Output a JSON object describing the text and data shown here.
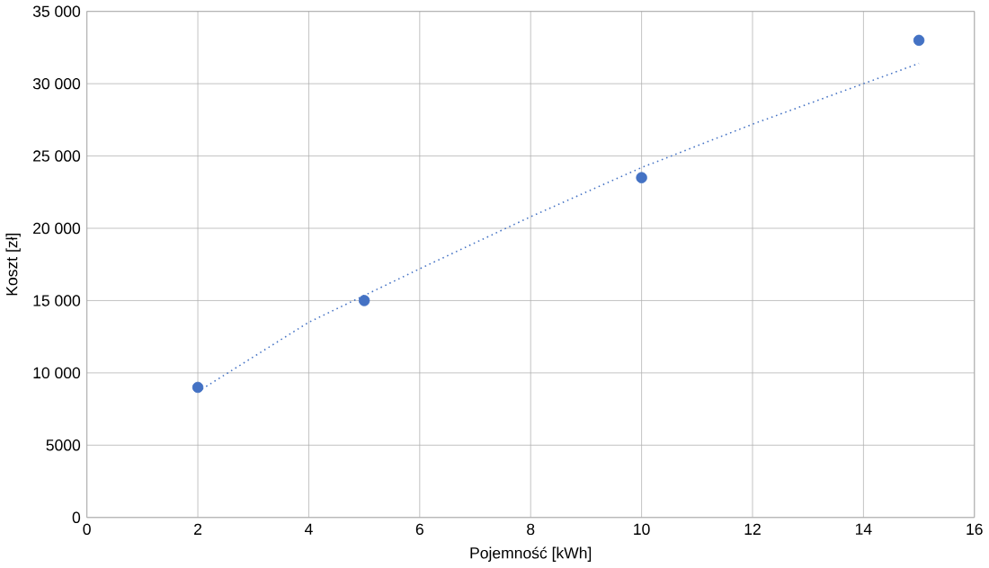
{
  "chart_data": {
    "type": "scatter",
    "xlabel": "Pojemność [kWh]",
    "ylabel": "Koszt [zł]",
    "xlim": [
      0,
      16
    ],
    "xticks": [
      0,
      2,
      4,
      6,
      8,
      10,
      12,
      14,
      16
    ],
    "ylim": [
      0,
      35000
    ],
    "yticks": [
      0,
      5000,
      {
        "value": 10000,
        "label": "10 000"
      },
      {
        "value": 15000,
        "label": "15 000"
      },
      {
        "value": 20000,
        "label": "20 000"
      },
      {
        "value": 25000,
        "label": "25 000"
      },
      {
        "value": 30000,
        "label": "30 000"
      },
      {
        "value": 35000,
        "label": "35 000"
      }
    ],
    "grid": true,
    "marker": "circle",
    "series": [
      {
        "type": "scatter",
        "color": "#4472c4",
        "x": [
          2,
          5,
          10,
          15
        ],
        "values": [
          9000,
          15000,
          23500,
          33000
        ]
      },
      {
        "type": "line",
        "color": "#4472c4",
        "line_style": "dotted",
        "marker": "none",
        "x": [
          2,
          4,
          6,
          8,
          10,
          12,
          14,
          15
        ],
        "values": [
          8700,
          13500,
          17200,
          20800,
          24200,
          27200,
          30000,
          31400
        ]
      }
    ]
  }
}
